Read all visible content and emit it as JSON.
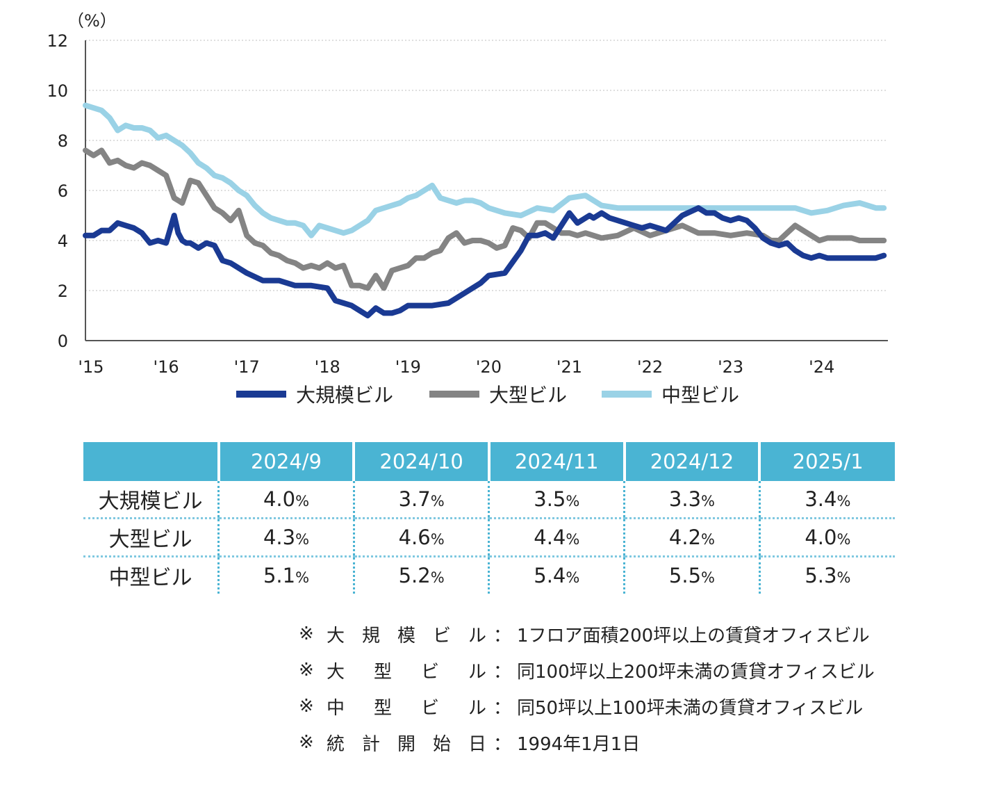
{
  "chart_data": {
    "type": "line",
    "unit_label": "（%）",
    "ylim": [
      0,
      12
    ],
    "y_ticks": [
      "0",
      "2",
      "4",
      "6",
      "8",
      "10",
      "12"
    ],
    "x_ticks": [
      "'15",
      "'16",
      "'17",
      "'18",
      "'19",
      "'20",
      "'21",
      "'22",
      "'23",
      "'24"
    ],
    "x_range": [
      2015.0,
      2024.95
    ],
    "grid": "dotted horizontal",
    "legend_position": "bottom",
    "series": [
      {
        "name": "大規模ビル",
        "color": "#1a3a93",
        "x": [
          2015.0,
          2015.1,
          2015.2,
          2015.3,
          2015.4,
          2015.5,
          2015.6,
          2015.7,
          2015.8,
          2015.9,
          2016.0,
          2016.1,
          2016.15,
          2016.2,
          2016.25,
          2016.3,
          2016.4,
          2016.5,
          2016.6,
          2016.7,
          2016.8,
          2016.9,
          2017.0,
          2017.2,
          2017.4,
          2017.6,
          2017.8,
          2018.0,
          2018.1,
          2018.2,
          2018.3,
          2018.4,
          2018.5,
          2018.6,
          2018.7,
          2018.8,
          2018.9,
          2019.0,
          2019.1,
          2019.3,
          2019.5,
          2019.7,
          2019.9,
          2020.0,
          2020.2,
          2020.4,
          2020.5,
          2020.6,
          2020.7,
          2020.8,
          2021.0,
          2021.1,
          2021.2,
          2021.25,
          2021.3,
          2021.4,
          2021.5,
          2021.6,
          2021.7,
          2021.8,
          2021.9,
          2022.0,
          2022.2,
          2022.4,
          2022.6,
          2022.7,
          2022.8,
          2022.9,
          2023.0,
          2023.1,
          2023.2,
          2023.3,
          2023.4,
          2023.5,
          2023.6,
          2023.7,
          2023.8,
          2023.9,
          2024.0,
          2024.1,
          2024.2,
          2024.3,
          2024.4,
          2024.5,
          2024.6,
          2024.7,
          2024.8,
          2024.9
        ],
        "values": [
          4.2,
          4.2,
          4.4,
          4.4,
          4.7,
          4.6,
          4.5,
          4.3,
          3.9,
          4.0,
          3.9,
          5.0,
          4.3,
          4.0,
          3.9,
          3.9,
          3.7,
          3.9,
          3.8,
          3.2,
          3.1,
          2.9,
          2.7,
          2.4,
          2.4,
          2.2,
          2.2,
          2.1,
          1.6,
          1.5,
          1.4,
          1.2,
          1.0,
          1.3,
          1.1,
          1.1,
          1.2,
          1.4,
          1.4,
          1.4,
          1.5,
          1.9,
          2.3,
          2.6,
          2.7,
          3.6,
          4.2,
          4.2,
          4.3,
          4.1,
          5.1,
          4.7,
          4.9,
          5.0,
          4.9,
          5.1,
          4.9,
          4.8,
          4.7,
          4.6,
          4.5,
          4.6,
          4.4,
          5.0,
          5.3,
          5.1,
          5.1,
          4.9,
          4.8,
          4.9,
          4.8,
          4.5,
          4.1,
          3.9,
          3.8,
          3.9,
          3.6,
          3.4,
          3.3,
          3.4,
          3.3,
          3.3,
          3.3,
          3.3,
          3.3,
          3.3,
          3.3,
          3.4
        ],
        "recent": [
          4.0,
          3.7,
          3.5,
          3.3,
          3.4
        ]
      },
      {
        "name": "大型ビル",
        "color": "#848484",
        "x": [
          2015.0,
          2015.1,
          2015.2,
          2015.3,
          2015.4,
          2015.5,
          2015.6,
          2015.7,
          2015.8,
          2015.9,
          2016.0,
          2016.1,
          2016.2,
          2016.3,
          2016.4,
          2016.5,
          2016.6,
          2016.7,
          2016.8,
          2016.9,
          2017.0,
          2017.1,
          2017.2,
          2017.3,
          2017.4,
          2017.5,
          2017.6,
          2017.7,
          2017.8,
          2017.9,
          2018.0,
          2018.1,
          2018.2,
          2018.3,
          2018.4,
          2018.5,
          2018.6,
          2018.7,
          2018.8,
          2018.9,
          2019.0,
          2019.1,
          2019.2,
          2019.3,
          2019.4,
          2019.5,
          2019.6,
          2019.7,
          2019.8,
          2019.9,
          2020.0,
          2020.1,
          2020.2,
          2020.3,
          2020.4,
          2020.5,
          2020.6,
          2020.7,
          2020.8,
          2020.9,
          2021.0,
          2021.1,
          2021.2,
          2021.4,
          2021.6,
          2021.8,
          2022.0,
          2022.2,
          2022.4,
          2022.6,
          2022.8,
          2023.0,
          2023.2,
          2023.4,
          2023.5,
          2023.6,
          2023.7,
          2023.8,
          2023.9,
          2024.0,
          2024.1,
          2024.2,
          2024.3,
          2024.4,
          2024.5,
          2024.6,
          2024.7,
          2024.8,
          2024.9
        ],
        "values": [
          7.6,
          7.4,
          7.6,
          7.1,
          7.2,
          7.0,
          6.9,
          7.1,
          7.0,
          6.8,
          6.6,
          5.7,
          5.5,
          6.4,
          6.3,
          5.8,
          5.3,
          5.1,
          4.8,
          5.2,
          4.2,
          3.9,
          3.8,
          3.5,
          3.4,
          3.2,
          3.1,
          2.9,
          3.0,
          2.9,
          3.1,
          2.9,
          3.0,
          2.2,
          2.2,
          2.1,
          2.6,
          2.1,
          2.8,
          2.9,
          3.0,
          3.3,
          3.3,
          3.5,
          3.6,
          4.1,
          4.3,
          3.9,
          4.0,
          4.0,
          3.9,
          3.7,
          3.8,
          4.5,
          4.4,
          4.1,
          4.7,
          4.7,
          4.5,
          4.3,
          4.3,
          4.2,
          4.3,
          4.1,
          4.2,
          4.5,
          4.2,
          4.4,
          4.6,
          4.3,
          4.3,
          4.2,
          4.3,
          4.2,
          4.0,
          4.0,
          4.3,
          4.6,
          4.4,
          4.2,
          4.0,
          4.1,
          4.1,
          4.1,
          4.1,
          4.0,
          4.0,
          4.0,
          4.0
        ],
        "recent": [
          4.3,
          4.6,
          4.4,
          4.2,
          4.0
        ]
      },
      {
        "name": "中型ビル",
        "color": "#9ad2e6",
        "x": [
          2015.0,
          2015.1,
          2015.2,
          2015.3,
          2015.4,
          2015.5,
          2015.6,
          2015.7,
          2015.8,
          2015.9,
          2016.0,
          2016.1,
          2016.2,
          2016.3,
          2016.4,
          2016.5,
          2016.6,
          2016.7,
          2016.8,
          2016.9,
          2017.0,
          2017.1,
          2017.2,
          2017.3,
          2017.4,
          2017.5,
          2017.6,
          2017.7,
          2017.8,
          2017.9,
          2018.0,
          2018.1,
          2018.2,
          2018.3,
          2018.4,
          2018.5,
          2018.6,
          2018.7,
          2018.8,
          2018.9,
          2019.0,
          2019.1,
          2019.2,
          2019.3,
          2019.4,
          2019.5,
          2019.6,
          2019.7,
          2019.8,
          2019.9,
          2020.0,
          2020.2,
          2020.4,
          2020.6,
          2020.8,
          2021.0,
          2021.2,
          2021.4,
          2021.6,
          2021.8,
          2022.0,
          2022.2,
          2022.4,
          2022.6,
          2022.8,
          2023.0,
          2023.2,
          2023.4,
          2023.6,
          2023.8,
          2024.0,
          2024.2,
          2024.4,
          2024.6,
          2024.8,
          2024.9
        ],
        "values": [
          9.4,
          9.3,
          9.2,
          8.9,
          8.4,
          8.6,
          8.5,
          8.5,
          8.4,
          8.1,
          8.2,
          8.0,
          7.8,
          7.5,
          7.1,
          6.9,
          6.6,
          6.5,
          6.3,
          6.0,
          5.8,
          5.4,
          5.1,
          4.9,
          4.8,
          4.7,
          4.7,
          4.6,
          4.2,
          4.6,
          4.5,
          4.4,
          4.3,
          4.4,
          4.6,
          4.8,
          5.2,
          5.3,
          5.4,
          5.5,
          5.7,
          5.8,
          6.0,
          6.2,
          5.7,
          5.6,
          5.5,
          5.6,
          5.6,
          5.5,
          5.3,
          5.1,
          5.0,
          5.3,
          5.2,
          5.7,
          5.8,
          5.4,
          5.3,
          5.3,
          5.3,
          5.3,
          5.3,
          5.3,
          5.3,
          5.3,
          5.3,
          5.3,
          5.3,
          5.3,
          5.1,
          5.2,
          5.4,
          5.5,
          5.3,
          5.3
        ],
        "recent": [
          5.1,
          5.2,
          5.4,
          5.5,
          5.3
        ]
      }
    ]
  },
  "table": {
    "columns": [
      "2024/9",
      "2024/10",
      "2024/11",
      "2024/12",
      "2025/1"
    ],
    "rows": [
      {
        "label": "大規模ビル",
        "nums": [
          "4.0",
          "3.7",
          "3.5",
          "3.3",
          "3.4"
        ]
      },
      {
        "label": "大型ビル",
        "nums": [
          "4.3",
          "4.6",
          "4.4",
          "4.2",
          "4.0"
        ]
      },
      {
        "label": "中型ビル",
        "nums": [
          "5.1",
          "5.2",
          "5.4",
          "5.5",
          "5.3"
        ]
      }
    ],
    "pct_symbol": "%"
  },
  "notes": [
    {
      "mark": "※",
      "term_chars": [
        "大",
        "規",
        "模",
        "ビ",
        "ル"
      ],
      "colon": "：",
      "desc": "1フロア面積200坪以上の賃貸オフィスビル"
    },
    {
      "mark": "※",
      "term_chars": [
        "大",
        "型",
        "ビ",
        "ル"
      ],
      "colon": "：",
      "desc": "同100坪以上200坪未満の賃貸オフィスビル"
    },
    {
      "mark": "※",
      "term_chars": [
        "中",
        "型",
        "ビ",
        "ル"
      ],
      "colon": "：",
      "desc": "同50坪以上100坪未満の賃貸オフィスビル"
    },
    {
      "mark": "※",
      "term_chars": [
        "統",
        "計",
        "開",
        "始",
        "日"
      ],
      "colon": "：",
      "desc": "1994年1月1日"
    }
  ]
}
